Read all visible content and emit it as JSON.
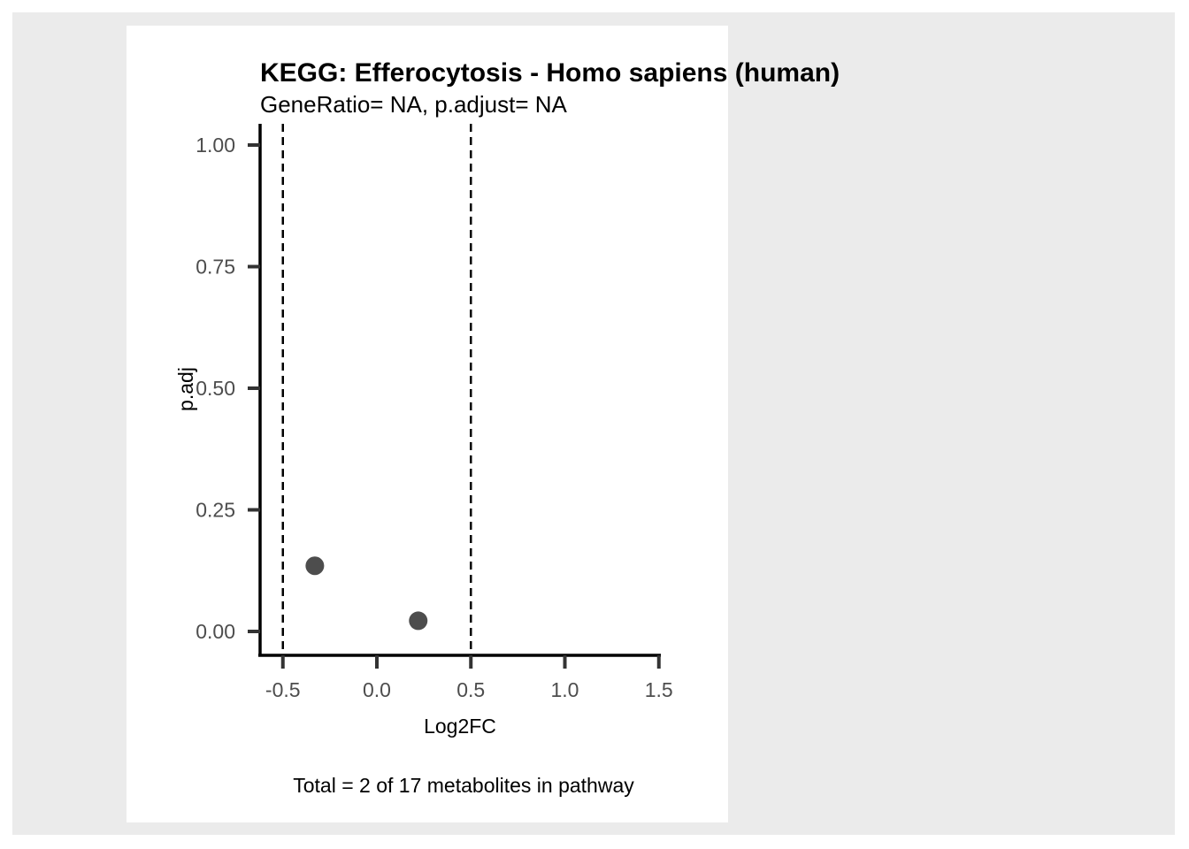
{
  "chart_data": {
    "type": "scatter",
    "title": "KEGG: Efferocytosis - Homo sapiens (human)",
    "subtitle": "GeneRatio= NA, p.adjust= NA",
    "xlabel": "Log2FC",
    "ylabel": "p.adj",
    "caption": "Total = 2 of 17 metabolites in pathway",
    "xlim": [
      -0.62,
      1.5
    ],
    "ylim": [
      0.0,
      1.0
    ],
    "x_ticks": [
      {
        "value": -0.5,
        "label": "-0.5"
      },
      {
        "value": 0.0,
        "label": "0.0"
      },
      {
        "value": 0.5,
        "label": "0.5"
      },
      {
        "value": 1.0,
        "label": "1.0"
      },
      {
        "value": 1.5,
        "label": "1.5"
      }
    ],
    "y_ticks": [
      {
        "value": 0.0,
        "label": "0.00"
      },
      {
        "value": 0.25,
        "label": "0.25"
      },
      {
        "value": 0.5,
        "label": "0.50"
      },
      {
        "value": 0.75,
        "label": "0.75"
      },
      {
        "value": 1.0,
        "label": "1.00"
      }
    ],
    "vlines": [
      -0.5,
      0.5
    ],
    "points": [
      {
        "x": -0.33,
        "y": 0.135
      },
      {
        "x": 0.22,
        "y": 0.022
      }
    ],
    "grid": false,
    "colors": {
      "point": "#4d4d4d",
      "axis": "#000000",
      "tick_label": "#4d4d4d",
      "outer_background": "#ebebeb",
      "panel_background": "#ffffff"
    }
  }
}
